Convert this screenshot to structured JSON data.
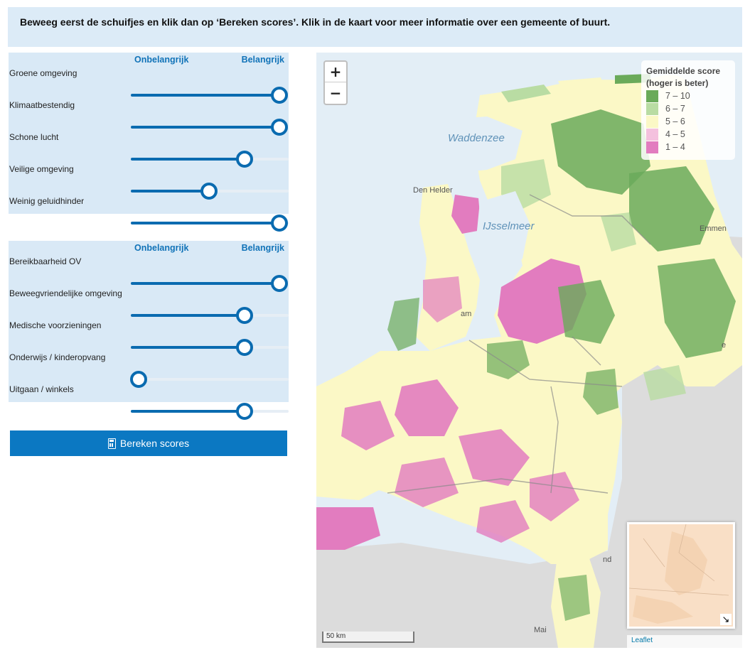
{
  "intro": {
    "text": "Beweeg eerst de schuifjes en klik dan op ‘Bereken scores’. Klik in de kaart voor meer informatie over een gemeente of buurt."
  },
  "scale": {
    "left": "Onbelangrijk",
    "right": "Belangrijk"
  },
  "group1": [
    {
      "label": "Groene omgeving",
      "value": 1.0
    },
    {
      "label": "Klimaatbestendig",
      "value": 1.0
    },
    {
      "label": "Schone lucht",
      "value": 0.75
    },
    {
      "label": "Veilige omgeving",
      "value": 0.5
    },
    {
      "label": "Weinig geluidhinder",
      "value": 1.0
    }
  ],
  "group2": [
    {
      "label": "Bereikbaarheid OV",
      "value": 1.0
    },
    {
      "label": "Beweegvriendelijke omgeving",
      "value": 0.75
    },
    {
      "label": "Medische voorzieningen",
      "value": 0.75
    },
    {
      "label": "Onderwijs / kinderopvang",
      "value": 0.0
    },
    {
      "label": "Uitgaan / winkels",
      "value": 0.75
    }
  ],
  "button": {
    "label": "Bereken scores",
    "icon": "calculator-icon"
  },
  "map": {
    "zoom_in": "+",
    "zoom_out": "−",
    "legend": {
      "title": "Gemiddelde score (hoger is beter)",
      "items": [
        {
          "label": "7 – 10",
          "color": "#6aaa5a"
        },
        {
          "label": "6 – 7",
          "color": "#b9dca3"
        },
        {
          "label": "5 – 6",
          "color": "#fbf8c6"
        },
        {
          "label": "4 – 5",
          "color": "#f4c1de"
        },
        {
          "label": "1 – 4",
          "color": "#e27cbf"
        }
      ]
    },
    "water_labels": [
      "Waddenzee",
      "IJsselmeer"
    ],
    "place_labels": [
      "Den Helder",
      "Emmen",
      "Mai",
      "nd",
      "am",
      "e"
    ],
    "scale_label": "50 km",
    "attribution": "Leaflet",
    "minimap_toggle": "↘"
  }
}
